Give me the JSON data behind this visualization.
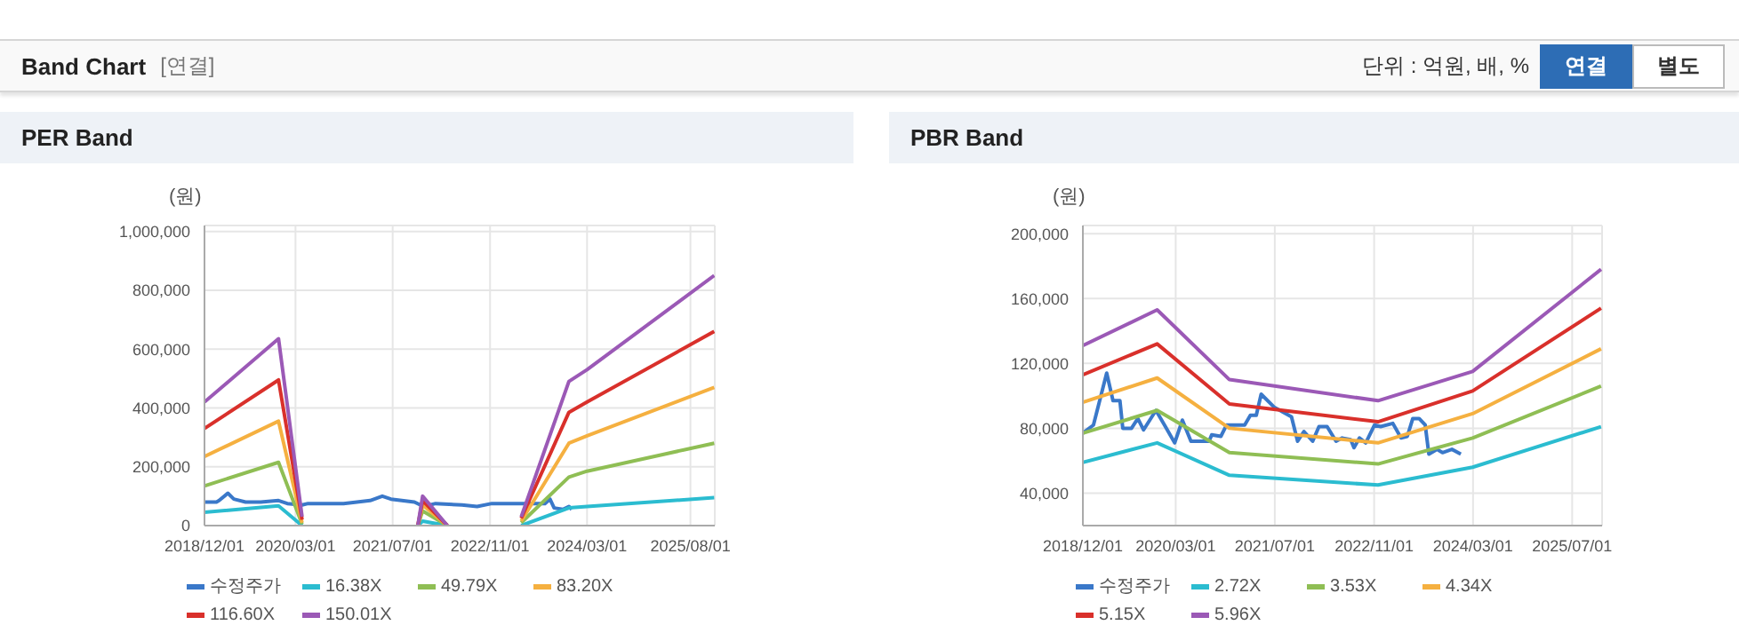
{
  "chart_data": [
    {
      "type": "other",
      "title": "Band Chart",
      "annotations": [
        "[연결]",
        "단위 : 억원, 배, %",
        "연결",
        "별도"
      ]
    },
    {
      "type": "line",
      "title": "PER Band",
      "ylabel": "(원)",
      "legend": "bottom",
      "grid": true,
      "xlim": [
        "2018-12-01",
        "2025-12-01"
      ],
      "xticks": [
        {
          "value": "2018-12-01",
          "label": "2018/12/01"
        },
        {
          "value": "2020-03-01",
          "label": "2020/03/01"
        },
        {
          "value": "2021-07-01",
          "label": "2021/07/01"
        },
        {
          "value": "2022-11-01",
          "label": "2022/11/01"
        },
        {
          "value": "2024-03-01",
          "label": "2024/03/01"
        },
        {
          "value": "2025-08-01",
          "label": "2025/08/01"
        }
      ],
      "ylim": [
        0,
        1020000
      ],
      "yticks": [
        {
          "value": 0,
          "label": "0"
        },
        {
          "value": 200000,
          "label": "200,000"
        },
        {
          "value": 400000,
          "label": "400,000"
        },
        {
          "value": 600000,
          "label": "600,000"
        },
        {
          "value": 800000,
          "label": "800,000"
        },
        {
          "value": 1000000,
          "label": "1,000,000"
        }
      ],
      "series": [
        {
          "name": "수정주가",
          "color": "#3a78c9",
          "x": [
            "2018-12-01",
            "2019-01-30",
            "2019-02-12",
            "2019-03-28",
            "2019-04-27",
            "2019-06-25",
            "2019-09-09",
            "2019-12-07",
            "2020-01-20",
            "2020-04-03",
            "2020-05-03",
            "2020-10-28",
            "2021-03-10",
            "2021-05-10",
            "2021-06-22",
            "2021-10-18",
            "2021-12-03",
            "2022-02-01",
            "2022-06-13",
            "2022-08-28",
            "2022-11-10",
            "2023-04-06",
            "2023-08-03",
            "2023-08-28",
            "2023-09-18",
            "2023-11-01",
            "2023-12-01",
            "2023-12-15"
          ],
          "values": [
            80000,
            80000,
            85000,
            110000,
            90000,
            80000,
            80000,
            85000,
            75000,
            70000,
            75000,
            75000,
            85000,
            100000,
            90000,
            80000,
            65000,
            75000,
            70000,
            65000,
            75000,
            75000,
            75000,
            90000,
            60000,
            55000,
            65000,
            55000
          ]
        },
        {
          "name": "16.38X",
          "color": "#2bbcd0",
          "x": [
            "2018-12-01",
            "2019-12-07",
            "2020-04-03",
            "2021-01-01",
            "2021-11-04",
            "2021-11-28",
            "2022-04-01",
            "2022-12-01",
            "2023-04-06",
            "2023-12-01",
            "2024-03-01",
            "2025-11-28"
          ],
          "values": [
            45000,
            67000,
            0,
            null,
            0,
            15000,
            0,
            null,
            0,
            60000,
            65000,
            95000
          ]
        },
        {
          "name": "49.79X",
          "color": "#8fbe54",
          "x": [
            "2018-12-01",
            "2019-12-07",
            "2020-04-03",
            "2021-01-01",
            "2021-11-04",
            "2021-11-28",
            "2022-04-01",
            "2022-12-01",
            "2023-04-06",
            "2023-12-01",
            "2024-03-01",
            "2025-11-28"
          ],
          "values": [
            135000,
            215000,
            5000,
            null,
            0,
            50000,
            0,
            null,
            10000,
            165000,
            185000,
            280000
          ]
        },
        {
          "name": "83.20X",
          "color": "#f5b040",
          "x": [
            "2018-12-01",
            "2019-12-07",
            "2020-04-03",
            "2021-01-01",
            "2021-11-04",
            "2021-11-28",
            "2022-04-01",
            "2022-12-01",
            "2023-04-06",
            "2023-12-01",
            "2024-03-01",
            "2025-11-28"
          ],
          "values": [
            235000,
            355000,
            10000,
            null,
            0,
            70000,
            0,
            null,
            15000,
            280000,
            305000,
            470000
          ]
        },
        {
          "name": "116.60X",
          "color": "#d9302b",
          "x": [
            "2018-12-01",
            "2019-12-07",
            "2020-04-03",
            "2021-01-01",
            "2021-11-04",
            "2021-11-28",
            "2022-04-01",
            "2022-12-01",
            "2023-04-06",
            "2023-12-01",
            "2024-03-01",
            "2025-11-28"
          ],
          "values": [
            330000,
            495000,
            20000,
            null,
            0,
            85000,
            0,
            null,
            25000,
            385000,
            420000,
            660000
          ]
        },
        {
          "name": "150.01X",
          "color": "#9b59b6",
          "x": [
            "2018-12-01",
            "2019-12-07",
            "2020-04-03",
            "2021-01-01",
            "2021-11-04",
            "2021-11-28",
            "2022-04-01",
            "2022-12-01",
            "2023-04-06",
            "2023-12-01",
            "2024-03-01",
            "2025-11-28"
          ],
          "values": [
            420000,
            635000,
            30000,
            null,
            0,
            100000,
            0,
            null,
            30000,
            490000,
            530000,
            850000
          ]
        }
      ]
    },
    {
      "type": "line",
      "title": "PBR Band",
      "ylabel": "(원)",
      "legend": "bottom",
      "grid": true,
      "xlim": [
        "2018-12-01",
        "2025-11-25"
      ],
      "xticks": [
        {
          "value": "2018-12-01",
          "label": "2018/12/01"
        },
        {
          "value": "2020-03-01",
          "label": "2020/03/01"
        },
        {
          "value": "2021-07-01",
          "label": "2021/07/01"
        },
        {
          "value": "2022-11-01",
          "label": "2022/11/01"
        },
        {
          "value": "2024-03-01",
          "label": "2024/03/01"
        },
        {
          "value": "2025-07-01",
          "label": "2025/07/01"
        }
      ],
      "ylim": [
        20000,
        205000
      ],
      "yticks": [
        {
          "value": 40000,
          "label": "40,000"
        },
        {
          "value": 80000,
          "label": "80,000"
        },
        {
          "value": 120000,
          "label": "120,000"
        },
        {
          "value": 160000,
          "label": "160,000"
        },
        {
          "value": 200000,
          "label": "200,000"
        }
      ],
      "series": [
        {
          "name": "수정주가",
          "color": "#3a78c9",
          "x": [
            "2018-12-01",
            "2019-01-22",
            "2019-03-28",
            "2019-04-28",
            "2019-06-01",
            "2019-06-15",
            "2019-07-28",
            "2019-08-28",
            "2019-09-25",
            "2019-11-25",
            "2020-01-06",
            "2020-02-25",
            "2020-04-03",
            "2020-05-15",
            "2020-08-12",
            "2020-08-25",
            "2020-10-09",
            "2020-11-06",
            "2021-02-03",
            "2021-03-03",
            "2021-04-01",
            "2021-04-25",
            "2021-06-28",
            "2021-08-09",
            "2021-09-21",
            "2021-10-21",
            "2021-11-21",
            "2022-01-03",
            "2022-02-03",
            "2022-03-15",
            "2022-04-28",
            "2022-05-28",
            "2022-07-09",
            "2022-07-25",
            "2022-08-21",
            "2022-09-21",
            "2022-11-03",
            "2022-12-03",
            "2023-02-01",
            "2023-03-13",
            "2023-04-13",
            "2023-05-10",
            "2023-06-10",
            "2023-07-10",
            "2023-07-28",
            "2023-09-06",
            "2023-10-03",
            "2023-11-18",
            "2024-01-01"
          ],
          "values": [
            77000,
            82000,
            114000,
            97000,
            97000,
            80000,
            80000,
            86000,
            79000,
            91000,
            82000,
            71000,
            85000,
            72000,
            72000,
            76000,
            75000,
            82000,
            82000,
            88000,
            88000,
            101000,
            93000,
            90000,
            87000,
            72000,
            78000,
            72000,
            81000,
            81000,
            72000,
            74000,
            73000,
            68000,
            74000,
            71000,
            82000,
            81000,
            83000,
            74000,
            75000,
            86000,
            86000,
            82000,
            64000,
            67000,
            65000,
            67000,
            64000
          ]
        },
        {
          "name": "2.72X",
          "color": "#2bbcd0",
          "x": [
            "2018-12-01",
            "2019-12-01",
            "2020-11-20",
            "2022-11-20",
            "2024-02-28",
            "2025-11-20"
          ],
          "values": [
            59000,
            71000,
            51000,
            45000,
            56000,
            81000
          ]
        },
        {
          "name": "3.53X",
          "color": "#8fbe54",
          "x": [
            "2018-12-01",
            "2019-12-01",
            "2020-11-20",
            "2022-11-20",
            "2024-02-28",
            "2025-11-20"
          ],
          "values": [
            77000,
            91000,
            65000,
            58000,
            74000,
            106000
          ]
        },
        {
          "name": "4.34X",
          "color": "#f5b040",
          "x": [
            "2018-12-01",
            "2019-12-01",
            "2020-11-20",
            "2022-11-20",
            "2024-02-28",
            "2025-11-20"
          ],
          "values": [
            96000,
            111000,
            80000,
            71000,
            89000,
            129000
          ]
        },
        {
          "name": "5.15X",
          "color": "#d9302b",
          "x": [
            "2018-12-01",
            "2019-12-01",
            "2020-11-20",
            "2022-11-20",
            "2024-02-28",
            "2025-11-20"
          ],
          "values": [
            113000,
            132000,
            95000,
            84000,
            103000,
            154000
          ]
        },
        {
          "name": "5.96X",
          "color": "#9b59b6",
          "x": [
            "2018-12-01",
            "2019-12-01",
            "2020-11-20",
            "2022-11-20",
            "2024-02-28",
            "2025-11-20"
          ],
          "values": [
            131000,
            153000,
            110000,
            97000,
            115000,
            178000
          ]
        }
      ]
    }
  ]
}
